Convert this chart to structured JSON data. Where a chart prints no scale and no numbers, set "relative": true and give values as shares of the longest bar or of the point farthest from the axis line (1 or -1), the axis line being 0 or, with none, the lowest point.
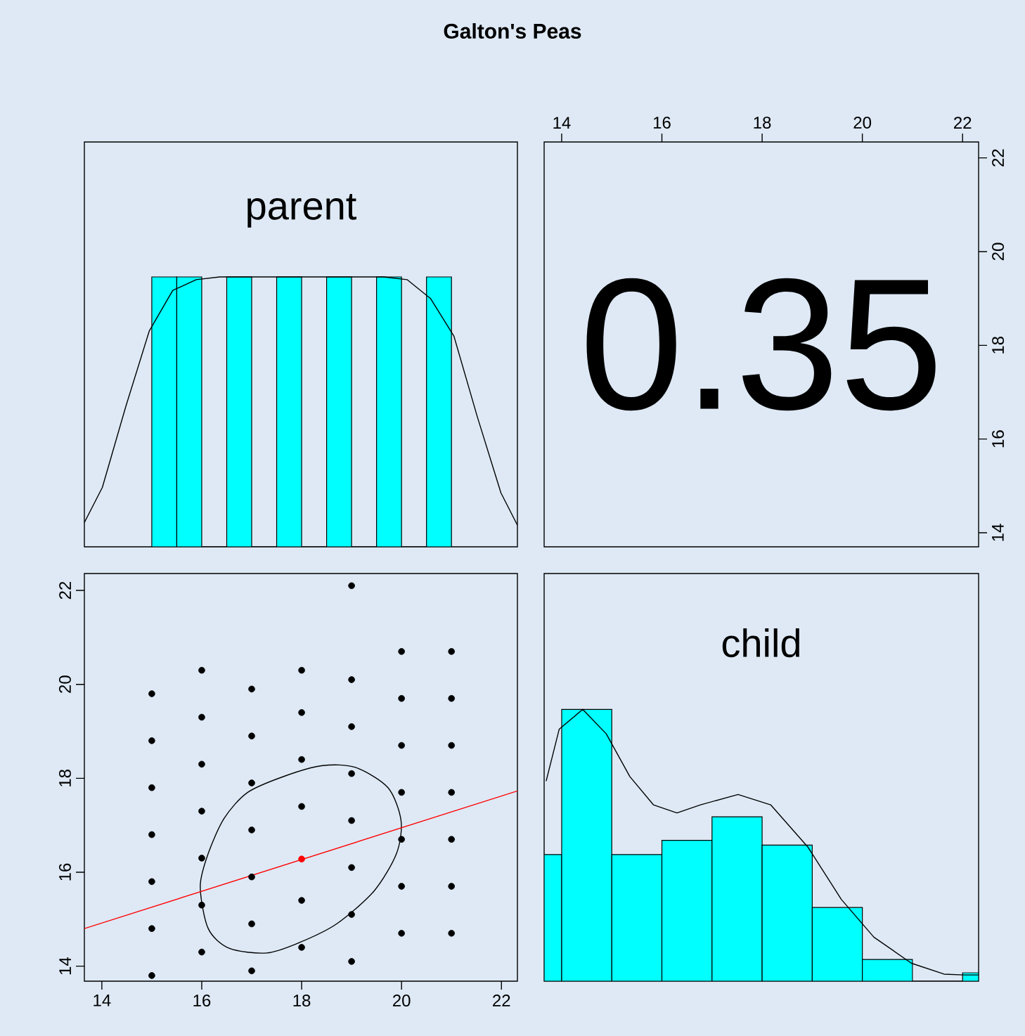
{
  "chart_data": [
    {
      "type": "histogram",
      "title": "Galton's Peas",
      "annotations": [
        "parent"
      ],
      "relative": true,
      "xlim": [
        13.65,
        22.32
      ],
      "color": "#00ffff",
      "bins": [
        15,
        15.5,
        16,
        16.5,
        17,
        17.5,
        18,
        18.5,
        19,
        19.5,
        20,
        20.5,
        21
      ],
      "values": [
        1,
        1,
        0,
        1,
        0,
        1,
        0,
        1,
        0,
        1,
        0,
        1
      ],
      "series": [
        {
          "type": "line",
          "color": "#000000",
          "x": [
            13.65,
            14.01,
            14.48,
            14.95,
            15.42,
            15.89,
            16.36,
            19.64,
            20.11,
            20.58,
            21.05,
            21.52,
            21.99,
            22.32
          ],
          "values": [
            0.09,
            0.22,
            0.52,
            0.8,
            0.95,
            0.99,
            1,
            1,
            0.99,
            0.92,
            0.78,
            0.48,
            0.2,
            0.08
          ]
        }
      ]
    },
    {
      "type": "scatter",
      "annotations": [
        "0.35"
      ],
      "xlim": [
        13.65,
        22.32
      ],
      "xticks": [
        14,
        16,
        18,
        20,
        22
      ],
      "ylim": [
        13.7,
        22.34
      ],
      "yticks": [
        14,
        16,
        18,
        20,
        22
      ]
    },
    {
      "type": "scatter",
      "xlim": [
        13.65,
        22.32
      ],
      "xticks": [
        14,
        16,
        18,
        20,
        22
      ],
      "ylim": [
        13.68,
        22.36
      ],
      "yticks": [
        14,
        16,
        18,
        20,
        22
      ],
      "series": [
        {
          "color": "#000000",
          "marker": "circle",
          "x": [
            15,
            15,
            15,
            15,
            15,
            15,
            15,
            16,
            16,
            16,
            16,
            16,
            16,
            16,
            17,
            17,
            17,
            17,
            17,
            17,
            17,
            18,
            18,
            18,
            18,
            18,
            18,
            19,
            19,
            19,
            19,
            19,
            19,
            19,
            19,
            20,
            20,
            20,
            20,
            20,
            20,
            20,
            21,
            21,
            21,
            21,
            21,
            21,
            21
          ],
          "values": [
            19.8,
            18.8,
            17.8,
            16.8,
            15.8,
            14.8,
            13.8,
            20.3,
            19.3,
            18.3,
            17.3,
            16.3,
            15.3,
            14.3,
            19.9,
            18.9,
            17.9,
            16.9,
            15.9,
            14.9,
            13.9,
            20.3,
            19.4,
            18.4,
            17.4,
            15.4,
            14.4,
            22.1,
            20.1,
            19.1,
            18.1,
            17.1,
            16.1,
            15.1,
            14.1,
            20.7,
            19.7,
            18.7,
            17.7,
            16.7,
            15.7,
            14.7,
            20.7,
            19.7,
            18.7,
            17.7,
            16.7,
            15.7,
            14.7
          ]
        },
        {
          "type": "line",
          "color": "#ff0000",
          "x": [
            13.65,
            22.32
          ],
          "values": [
            14.8,
            17.73
          ]
        },
        {
          "color": "#ff0000",
          "marker": "circle",
          "x": [
            18
          ],
          "values": [
            16.28
          ]
        }
      ]
    },
    {
      "type": "histogram",
      "annotations": [
        "child"
      ],
      "relative": true,
      "xlim": [
        13.65,
        22.32
      ],
      "color": "#00ffff",
      "bins": [
        13.65,
        14,
        15,
        16,
        17,
        18,
        19,
        20,
        21,
        22,
        22.32
      ],
      "values": [
        0.466,
        1,
        0.466,
        0.518,
        0.605,
        0.501,
        0.271,
        0.08,
        0,
        0.031
      ],
      "series": [
        {
          "type": "line",
          "color": "#000000",
          "x": [
            13.69,
            13.95,
            14.42,
            14.89,
            15.36,
            15.83,
            16.3,
            16.77,
            17.52,
            18.17,
            18.92,
            19.58,
            20.23,
            20.98,
            21.63,
            22.02,
            22.32
          ],
          "values": [
            0.736,
            0.927,
            1,
            0.91,
            0.753,
            0.649,
            0.619,
            0.649,
            0.687,
            0.649,
            0.492,
            0.301,
            0.162,
            0.066,
            0.026,
            0.023,
            0.023
          ]
        }
      ]
    }
  ]
}
